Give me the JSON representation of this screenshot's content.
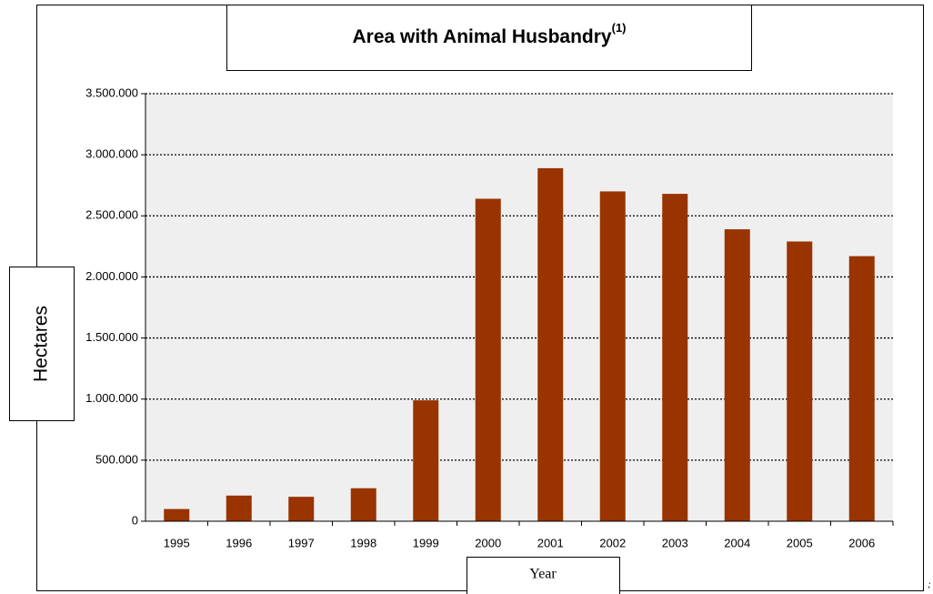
{
  "chart_data": {
    "type": "bar",
    "title": "Area with Animal Husbandry",
    "title_note": "(1)",
    "x_label": "Year",
    "y_label": "Hectares",
    "corner_mark": ";",
    "categories": [
      "1995",
      "1996",
      "1997",
      "1998",
      "1999",
      "2000",
      "2001",
      "2002",
      "2003",
      "2004",
      "2005",
      "2006"
    ],
    "values": [
      100000,
      210000,
      200000,
      270000,
      990000,
      2640000,
      2890000,
      2700000,
      2680000,
      2390000,
      2290000,
      2170000
    ],
    "color": "#993300",
    "ylim": [
      0,
      3500000
    ],
    "yticks": [
      0,
      {
        "value": 500000,
        "label": "500.000"
      },
      {
        "value": 1000000,
        "label": "1.000.000"
      },
      {
        "value": 1500000,
        "label": "1.500.000"
      },
      {
        "value": 2000000,
        "label": "2.000.000"
      },
      {
        "value": 2500000,
        "label": "2.500.000"
      },
      {
        "value": 3000000,
        "label": "3.000.000"
      },
      {
        "value": 3500000,
        "label": "3.500.000"
      }
    ],
    "grid": true
  }
}
